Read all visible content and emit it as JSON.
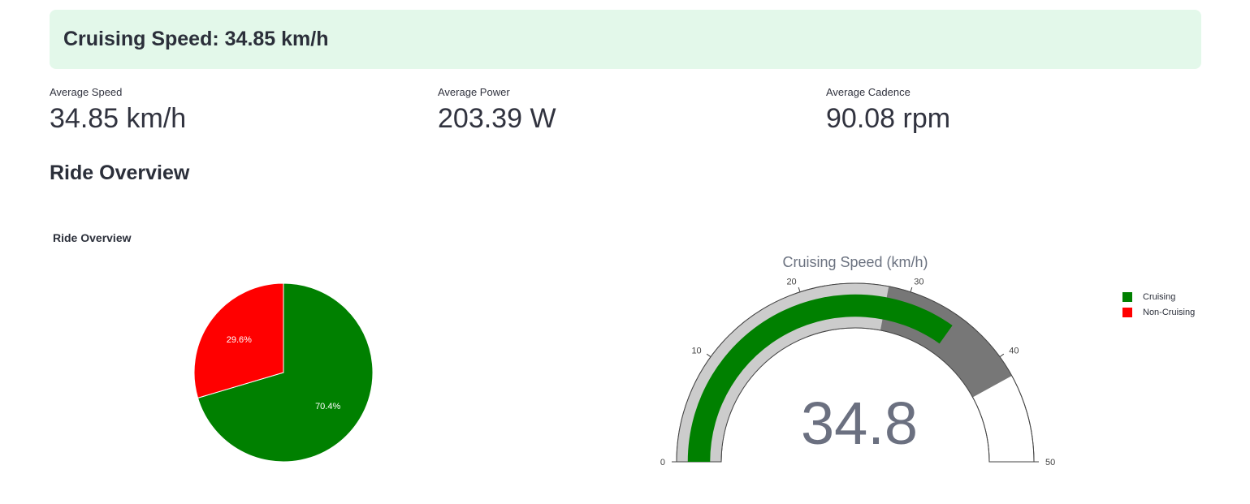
{
  "banner": {
    "text": "Cruising Speed: 34.85 km/h"
  },
  "metrics": [
    {
      "label": "Average Speed",
      "value": "34.85 km/h"
    },
    {
      "label": "Average Power",
      "value": "203.39 W"
    },
    {
      "label": "Average Cadence",
      "value": "90.08 rpm"
    }
  ],
  "section_title": "Ride Overview",
  "pie_title": "Ride Overview",
  "colors": {
    "cruising": "#008000",
    "non_cruising": "#ff0000",
    "gauge_light": "#cccccc",
    "gauge_dark": "#777777"
  },
  "chart_data": [
    {
      "type": "pie",
      "title": "Ride Overview",
      "labels": [
        "Cruising",
        "Non-Cruising"
      ],
      "values": [
        70.4,
        29.6
      ],
      "value_labels": [
        "70.4%",
        "29.6%"
      ],
      "legend_position": "right"
    },
    {
      "type": "gauge",
      "title": "Cruising Speed (km/h)",
      "value": 34.85,
      "display_value": "34.8",
      "range": [
        0,
        50
      ],
      "ticks": [
        "0",
        "10",
        "20",
        "30",
        "40",
        "50"
      ],
      "steps": [
        {
          "range": [
            0,
            28
          ],
          "color": "#cccccc"
        },
        {
          "range": [
            28,
            42
          ],
          "color": "#777777"
        }
      ],
      "bar_color": "#008000"
    }
  ],
  "legend": [
    {
      "label": "Cruising",
      "color": "#008000"
    },
    {
      "label": "Non-Cruising",
      "color": "#ff0000"
    }
  ]
}
